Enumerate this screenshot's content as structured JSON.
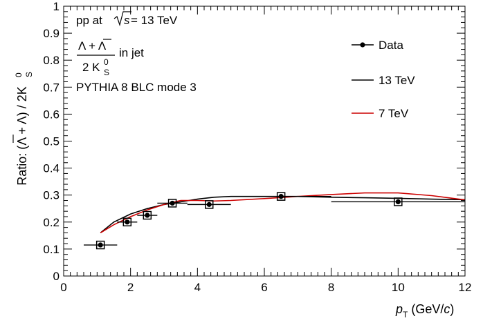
{
  "chart_data": {
    "type": "line",
    "xlim": [
      0,
      12
    ],
    "ylim": [
      0,
      1
    ],
    "x_ticks": [
      "0",
      "2",
      "4",
      "6",
      "8",
      "10",
      "12"
    ],
    "y_ticks": [
      "0",
      "0.1",
      "0.2",
      "0.3",
      "0.4",
      "0.5",
      "0.6",
      "0.7",
      "0.8",
      "0.9",
      "1"
    ],
    "xlabel": {
      "main": "p",
      "sub": "T",
      "rest": " (GeV/",
      "c": "c",
      "close": ")"
    },
    "ylabel": "Ratio: (Λ + Λ) / 2K",
    "ylabel_sup": "0",
    "ylabel_sub": "S",
    "annotations": {
      "line1_prefix": "pp at ",
      "line1_sqrt_s": "s",
      "line1_suffix": " = 13 TeV",
      "frac_numerator": "Λ + Λ",
      "frac_denominator": "2 K",
      "frac_den_sup": "0",
      "frac_den_sub": "S",
      "frac_suffix": "in jet",
      "line3": "PYTHIA 8 BLC mode 3"
    },
    "legend_position": "top-right",
    "grid": false,
    "series": [
      {
        "name": "Data",
        "kind": "points",
        "color": "#000000",
        "points": [
          {
            "x": 1.1,
            "y": 0.115,
            "xlo": 0.6,
            "xhi": 1.6
          },
          {
            "x": 1.9,
            "y": 0.2,
            "xlo": 1.6,
            "xhi": 2.2
          },
          {
            "x": 2.5,
            "y": 0.225,
            "xlo": 2.2,
            "xhi": 2.8
          },
          {
            "x": 3.25,
            "y": 0.27,
            "xlo": 2.8,
            "xhi": 3.7
          },
          {
            "x": 4.35,
            "y": 0.265,
            "xlo": 3.7,
            "xhi": 5.0
          },
          {
            "x": 6.5,
            "y": 0.295,
            "xlo": 5.0,
            "xhi": 8.0
          },
          {
            "x": 10.0,
            "y": 0.275,
            "xlo": 8.0,
            "xhi": 12.0
          }
        ]
      },
      {
        "name": "13 TeV",
        "kind": "line",
        "color": "#000000",
        "x": [
          1.1,
          1.5,
          2.0,
          2.5,
          3.0,
          3.5,
          4.0,
          4.5,
          5.0,
          6.0,
          7.0,
          8.0,
          9.0,
          10.0,
          11.0,
          12.0
        ],
        "y": [
          0.16,
          0.2,
          0.23,
          0.25,
          0.265,
          0.275,
          0.285,
          0.292,
          0.295,
          0.295,
          0.295,
          0.292,
          0.29,
          0.288,
          0.285,
          0.283
        ]
      },
      {
        "name": "7 TeV",
        "kind": "line",
        "color": "#cc0000",
        "x": [
          1.1,
          1.5,
          2.0,
          2.5,
          3.0,
          3.5,
          4.0,
          4.5,
          5.0,
          6.0,
          7.0,
          8.0,
          9.0,
          10.0,
          11.0,
          12.0
        ],
        "y": [
          0.16,
          0.19,
          0.22,
          0.245,
          0.265,
          0.28,
          0.28,
          0.278,
          0.28,
          0.287,
          0.295,
          0.302,
          0.308,
          0.308,
          0.298,
          0.282
        ]
      }
    ]
  }
}
